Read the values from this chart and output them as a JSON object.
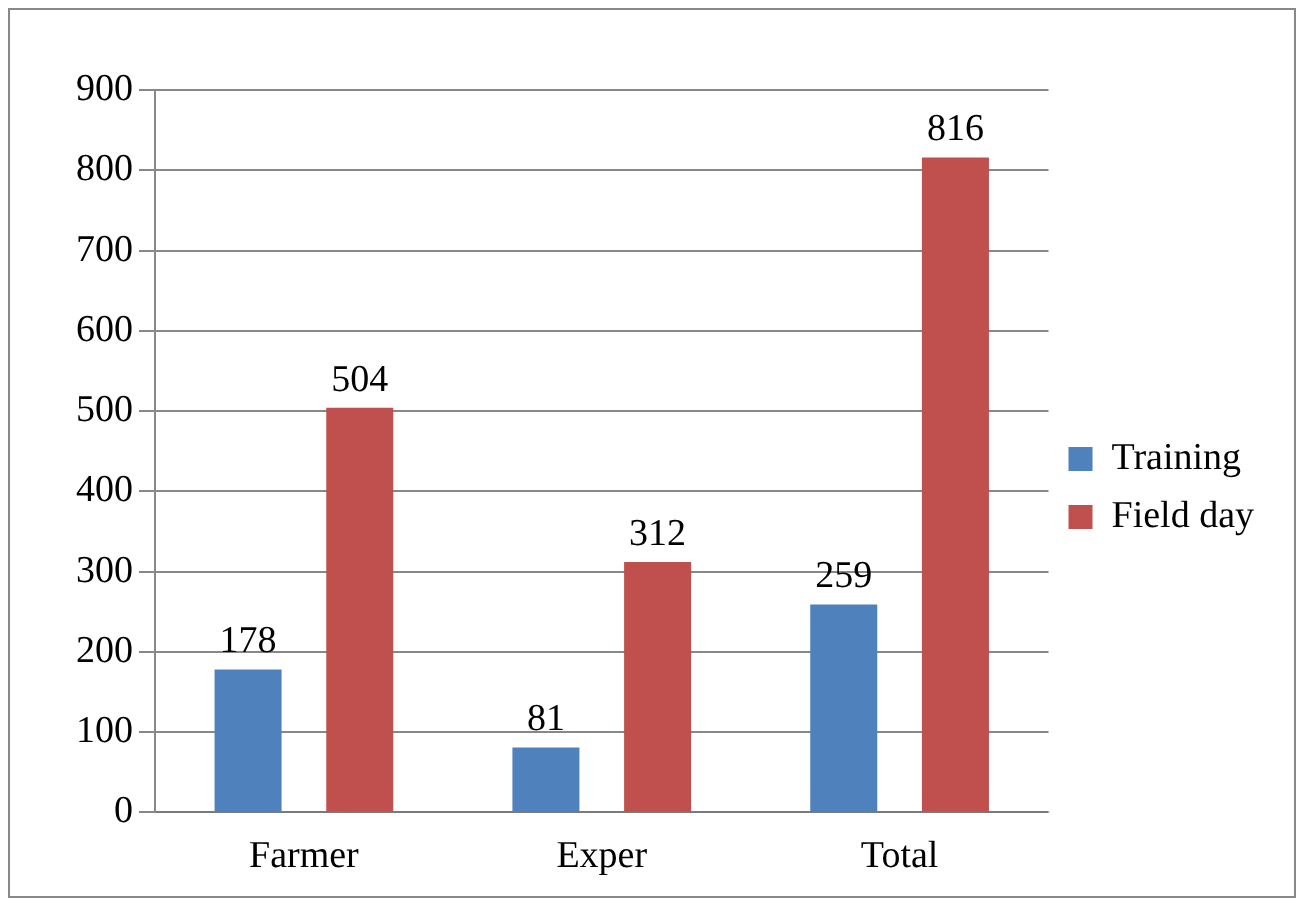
{
  "chart_data": {
    "type": "bar",
    "categories": [
      "Farmer",
      "Exper",
      "Total"
    ],
    "series": [
      {
        "name": "Training",
        "color": "#4f81bd",
        "values": [
          178,
          81,
          259
        ]
      },
      {
        "name": "Field day",
        "color": "#c0504d",
        "values": [
          504,
          312,
          816
        ]
      }
    ],
    "ylim": [
      0,
      900
    ],
    "yticks": [
      0,
      100,
      200,
      300,
      400,
      500,
      600,
      700,
      800,
      900
    ],
    "grid": "y",
    "legend": "right",
    "data_labels": true
  }
}
